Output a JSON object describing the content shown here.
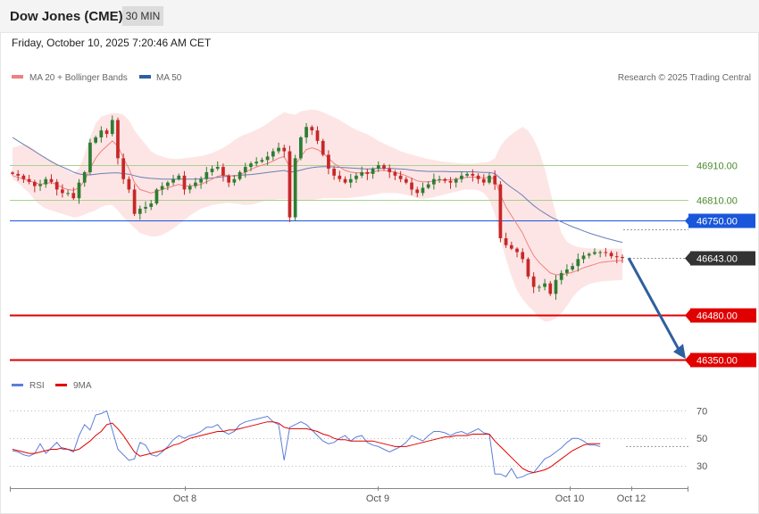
{
  "header": {
    "title": "Dow Jones (CME)",
    "timeframe": "30 MIN",
    "datetime": "Friday, October 10, 2025 7:20:46 AM CET"
  },
  "legend": {
    "ma20_label": "MA 20 + Bollinger Bands",
    "ma50_label": "MA 50",
    "rsi_label": "RSI",
    "rsi_ma_label": "9MA",
    "copyright": "Research © 2025 Trading Central"
  },
  "colors": {
    "up_candle": "#2e7d32",
    "down_candle": "#c62828",
    "bollinger_fill": "#fde0e0",
    "ma20": "#f08080",
    "ma50": "#6a7fb5",
    "pivot": "#1a56db",
    "support": "#e00000",
    "resistance_line": "#a9d18e",
    "resistance_text": "#4a8a2c",
    "arrow": "#2f5f9e",
    "rsi": "#5b7fd9",
    "rsi_ma": "#e00000",
    "last_price": "#333333"
  },
  "chart_data": [
    {
      "type": "candlestick",
      "name": "price",
      "ylim": [
        46320,
        47090
      ],
      "grid": false,
      "legend_position": "top-left",
      "x_ticks": [
        "Oct 8",
        "Oct 9",
        "Oct 10",
        "Oct 12"
      ],
      "last_price": 46643,
      "levels": [
        {
          "value": 46910,
          "label": "46910.00",
          "role": "resistance"
        },
        {
          "value": 46810,
          "label": "46810.00",
          "role": "resistance"
        },
        {
          "value": 46750,
          "label": "46750.00",
          "role": "pivot"
        },
        {
          "value": 46643,
          "label": "46643.00",
          "role": "last"
        },
        {
          "value": 46480,
          "label": "46480.00",
          "role": "support"
        },
        {
          "value": 46350,
          "label": "46350.00",
          "role": "support"
        }
      ],
      "forecast_arrow": {
        "from": 46643,
        "to": 46350
      },
      "close_points": [
        46885,
        46880,
        46870,
        46862,
        46850,
        46855,
        46870,
        46862,
        46840,
        46830,
        46830,
        46815,
        46860,
        46890,
        46975,
        46990,
        47010,
        47000,
        47040,
        46930,
        46870,
        46840,
        46770,
        46785,
        46790,
        46800,
        46840,
        46850,
        46860,
        46870,
        46880,
        46840,
        46850,
        46860,
        46870,
        46890,
        46900,
        46905,
        46880,
        46860,
        46870,
        46890,
        46905,
        46915,
        46920,
        46925,
        46935,
        46950,
        46960,
        46950,
        46760,
        46930,
        46990,
        47020,
        47010,
        46980,
        46940,
        46900,
        46880,
        46870,
        46860,
        46870,
        46880,
        46890,
        46885,
        46900,
        46910,
        46900,
        46890,
        46880,
        46870,
        46860,
        46840,
        46830,
        46845,
        46855,
        46870,
        46870,
        46865,
        46860,
        46870,
        46880,
        46885,
        46880,
        46870,
        46860,
        46880,
        46855,
        46700,
        46680,
        46670,
        46660,
        46640,
        46590,
        46560,
        46560,
        46570,
        46540,
        46580,
        46600,
        46610,
        46620,
        46640,
        46650,
        46655,
        46660,
        46660,
        46658,
        46648,
        46646,
        46643
      ],
      "ma20_points": [
        46880,
        46875,
        46870,
        46865,
        46860,
        46855,
        46858,
        46860,
        46855,
        46845,
        46840,
        46838,
        46845,
        46865,
        46900,
        46930,
        46950,
        46965,
        46980,
        46965,
        46930,
        46900,
        46860,
        46840,
        46835,
        46830,
        46835,
        46840,
        46845,
        46850,
        46855,
        46850,
        46850,
        46852,
        46855,
        46862,
        46870,
        46878,
        46882,
        46880,
        46878,
        46882,
        46890,
        46898,
        46905,
        46910,
        46915,
        46922,
        46930,
        46935,
        46905,
        46910,
        46935,
        46955,
        46960,
        46955,
        46945,
        46930,
        46915,
        46905,
        46895,
        46890,
        46888,
        46888,
        46887,
        46890,
        46895,
        46895,
        46893,
        46890,
        46885,
        46880,
        46872,
        46865,
        46862,
        46862,
        46865,
        46867,
        46868,
        46868,
        46870,
        46873,
        46875,
        46876,
        46875,
        46873,
        46875,
        46870,
        46825,
        46790,
        46765,
        46740,
        46715,
        46680,
        46650,
        46630,
        46615,
        46600,
        46595,
        46595,
        46598,
        46602,
        46608,
        46615,
        46620,
        46625,
        46630,
        46632,
        46634,
        46635,
        46636
      ],
      "ma50_points": [
        46990,
        46980,
        46970,
        46960,
        46950,
        46940,
        46930,
        46920,
        46912,
        46905,
        46898,
        46890,
        46885,
        46882,
        46882,
        46884,
        46886,
        46887,
        46888,
        46888,
        46886,
        46884,
        46880,
        46876,
        46874,
        46872,
        46871,
        46870,
        46870,
        46870,
        46870,
        46870,
        46870,
        46870,
        46871,
        46872,
        46873,
        46875,
        46877,
        46879,
        46880,
        46881,
        46882,
        46883,
        46885,
        46887,
        46889,
        46891,
        46893,
        46895,
        46890,
        46892,
        46896,
        46900,
        46903,
        46905,
        46906,
        46906,
        46905,
        46904,
        46903,
        46902,
        46901,
        46900,
        46899,
        46900,
        46901,
        46901,
        46901,
        46900,
        46899,
        46898,
        46896,
        46894,
        46893,
        46892,
        46892,
        46892,
        46892,
        46891,
        46891,
        46891,
        46891,
        46891,
        46890,
        46889,
        46889,
        46886,
        46872,
        46858,
        46846,
        46835,
        46823,
        46808,
        46794,
        46782,
        46772,
        46762,
        46754,
        46747,
        46740,
        46733,
        46727,
        46721,
        46715,
        46710,
        46705,
        46700,
        46696,
        46692,
        46688
      ],
      "bb_upper_points": [
        46960,
        46965,
        46970,
        46965,
        46955,
        46940,
        46930,
        46925,
        46915,
        46905,
        46895,
        46885,
        46900,
        46940,
        46990,
        47030,
        47050,
        47055,
        47060,
        47060,
        47055,
        47040,
        47010,
        46990,
        46970,
        46950,
        46940,
        46935,
        46930,
        46928,
        46928,
        46930,
        46932,
        46934,
        46936,
        46940,
        46945,
        46952,
        46960,
        46970,
        46982,
        46992,
        46999,
        47005,
        47012,
        47020,
        47030,
        47042,
        47052,
        47062,
        47058,
        47055,
        47065,
        47068,
        47070,
        47068,
        47062,
        47055,
        47048,
        47040,
        47030,
        47020,
        47012,
        47005,
        46999,
        46990,
        46980,
        46972,
        46965,
        46958,
        46950,
        46945,
        46940,
        46936,
        46932,
        46928,
        46925,
        46922,
        46920,
        46918,
        46916,
        46915,
        46915,
        46915,
        46916,
        46918,
        46920,
        46930,
        46965,
        46985,
        46998,
        47010,
        47020,
        47010,
        46985,
        46950,
        46900,
        46835,
        46770,
        46715,
        46690,
        46680,
        46675,
        46672,
        46671,
        46670,
        46670,
        46670,
        46670,
        46670,
        46670
      ],
      "bb_lower_points": [
        46870,
        46860,
        46845,
        46830,
        46810,
        46795,
        46785,
        46780,
        46775,
        46770,
        46765,
        46760,
        46762,
        46768,
        46775,
        46780,
        46790,
        46795,
        46795,
        46780,
        46760,
        46745,
        46730,
        46715,
        46710,
        46705,
        46705,
        46710,
        46718,
        46728,
        46740,
        46752,
        46765,
        46775,
        46785,
        46790,
        46795,
        46798,
        46800,
        46802,
        46800,
        46798,
        46795,
        46796,
        46800,
        46805,
        46808,
        46810,
        46812,
        46812,
        46812,
        46810,
        46810,
        46808,
        46810,
        46812,
        46815,
        46815,
        46815,
        46815,
        46815,
        46816,
        46818,
        46820,
        46822,
        46825,
        46828,
        46830,
        46830,
        46830,
        46828,
        46825,
        46820,
        46815,
        46813,
        46815,
        46818,
        46822,
        46826,
        46830,
        46834,
        46838,
        46840,
        46840,
        46838,
        46830,
        46810,
        46770,
        46700,
        46640,
        46590,
        46550,
        46525,
        46505,
        46490,
        46470,
        46460,
        46462,
        46470,
        46485,
        46505,
        46530,
        46548,
        46560,
        46568,
        46572,
        46575,
        46577,
        46578,
        46579,
        46580
      ]
    },
    {
      "type": "line",
      "name": "rsi",
      "ylim": [
        15,
        80
      ],
      "y_ticks": [
        "70",
        "50",
        "30"
      ],
      "reference_lines": [
        70,
        50,
        30
      ],
      "rsi_points": [
        41,
        40,
        38,
        37,
        39,
        46,
        39,
        43,
        47,
        42,
        42,
        40,
        52,
        60,
        56,
        67,
        68,
        70,
        56,
        42,
        38,
        34,
        35,
        47,
        45,
        38,
        37,
        40,
        44,
        49,
        52,
        50,
        52,
        53,
        55,
        58,
        58,
        60,
        55,
        53,
        55,
        60,
        62,
        63,
        64,
        65,
        66,
        62,
        60,
        34,
        58,
        60,
        62,
        60,
        56,
        52,
        48,
        46,
        47,
        50,
        52,
        48,
        51,
        52,
        47,
        45,
        44,
        42,
        40,
        42,
        44,
        47,
        52,
        50,
        48,
        52,
        55,
        55,
        54,
        52,
        54,
        55,
        53,
        55,
        57,
        54,
        53,
        24,
        24,
        22,
        28,
        21,
        22,
        24,
        25,
        30,
        35,
        37,
        40,
        43,
        47,
        50,
        50,
        48,
        45,
        45,
        44
      ],
      "rsi_ma_points": [
        42,
        41,
        40,
        39,
        39,
        40,
        41,
        42,
        42,
        43,
        42,
        41,
        42,
        45,
        48,
        52,
        55,
        60,
        61,
        57,
        52,
        46,
        40,
        37,
        38,
        39,
        40,
        41,
        43,
        45,
        46,
        48,
        50,
        51,
        52,
        53,
        54,
        55,
        55,
        56,
        56,
        57,
        58,
        59,
        60,
        61,
        62,
        62,
        61,
        58,
        57,
        57,
        57,
        57,
        56,
        55,
        53,
        52,
        50,
        49,
        49,
        48,
        48,
        48,
        48,
        48,
        47,
        46,
        45,
        44,
        44,
        44,
        45,
        46,
        47,
        48,
        49,
        50,
        51,
        51,
        52,
        52,
        52,
        53,
        53,
        53,
        53,
        48,
        44,
        40,
        36,
        32,
        28,
        26,
        25,
        26,
        27,
        29,
        32,
        35,
        38,
        41,
        43,
        45,
        46,
        46,
        46
      ]
    }
  ]
}
